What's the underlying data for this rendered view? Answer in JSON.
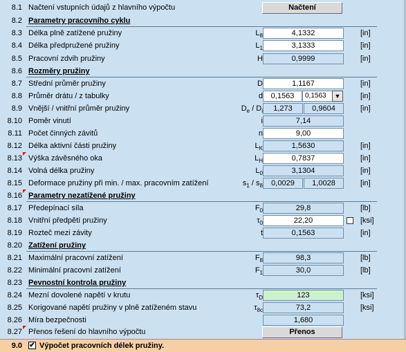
{
  "rows": {
    "r8_1": {
      "num": "8.1",
      "label": "Načtení vstupních údajů z hlavního výpočtu",
      "button": "Načtení"
    },
    "r8_2": {
      "num": "8.2",
      "label": "Parametry pracovního cyklu"
    },
    "r8_3": {
      "num": "8.3",
      "label": "Délka plně zatížené pružiny",
      "sym": "L",
      "sub": "8",
      "value": "4,1332",
      "unit": "[in]"
    },
    "r8_4": {
      "num": "8.4",
      "label": "Délka předpružené pružiny",
      "sym": "L",
      "sub": "1",
      "value": "3,1333",
      "unit": "[in]"
    },
    "r8_5": {
      "num": "8.5",
      "label": "Pracovní zdvih pružiny",
      "sym": "H",
      "value": "0,9999",
      "unit": "[in]"
    },
    "r8_6": {
      "num": "8.6",
      "label": "Rozměry pružiny"
    },
    "r8_7": {
      "num": "8.7",
      "label": "Střední průměr pružiny",
      "sym": "D",
      "value": "1,1167",
      "unit": "[in]"
    },
    "r8_8": {
      "num": "8.8",
      "label": "Průměr drátu / z tabulky",
      "sym": "d",
      "value": "0,1563",
      "dropdown_value": "0,1563",
      "unit": "[in]"
    },
    "r8_9": {
      "num": "8.9",
      "label": "Vnější / vnitřní průměr pružiny",
      "sym": "D",
      "sub": "e",
      "sym2": " / D",
      "sub2": "i",
      "value": "1,273",
      "value2": "0,9604",
      "unit": "[in]"
    },
    "r8_10": {
      "num": "8.10",
      "label": "Poměr vinutí",
      "sym": "i",
      "value": "7,14"
    },
    "r8_11": {
      "num": "8.11",
      "label": "Počet činných závitů",
      "sym": "n",
      "value": "9,00"
    },
    "r8_12": {
      "num": "8.12",
      "label": "Délka aktivní části pružiny",
      "sym": "L",
      "sub": "K",
      "value": "1,5630",
      "unit": "[in]"
    },
    "r8_13": {
      "num": "8.13",
      "label": "Výška závěsného oka",
      "sym": "L",
      "sub": "H",
      "value": "0,7837",
      "unit": "[in]"
    },
    "r8_14": {
      "num": "8.14",
      "label": "Volná délka pružiny",
      "sym": "L",
      "sub": "0",
      "value": "3,1304",
      "unit": "[in]"
    },
    "r8_15": {
      "num": "8.15",
      "label": "Deformace pružiny při min. / max. pracovním zatížení",
      "sym": "s",
      "sub": "1",
      "sym2": " / s",
      "sub2": "8",
      "value": "0,0029",
      "value2": "1,0028",
      "unit": "[in]"
    },
    "r8_16": {
      "num": "8.16",
      "label": "Parametry nezatížené pružiny"
    },
    "r8_17": {
      "num": "8.17",
      "label": "Předepínací síla",
      "sym": "F",
      "sub": "0",
      "value": "29,8",
      "unit": "[lb]"
    },
    "r8_18": {
      "num": "8.18",
      "label": "Vnitřní předpětí pružiny",
      "sym": "τ",
      "sub": "0",
      "value": "22,20",
      "unit": "[ksi]"
    },
    "r8_19": {
      "num": "8.19",
      "label": "Rozteč mezi závity",
      "sym": "t",
      "value": "0,1563",
      "unit": "[in]"
    },
    "r8_20": {
      "num": "8.20",
      "label": "Zatížení pružiny"
    },
    "r8_21": {
      "num": "8.21",
      "label": "Maximální pracovní zatížení",
      "sym": "F",
      "sub": "8",
      "value": "98,3",
      "unit": "[lb]"
    },
    "r8_22": {
      "num": "8.22",
      "label": "Minimální pracovní zatížení",
      "sym": "F",
      "sub": "1",
      "value": "30,0",
      "unit": "[lb]"
    },
    "r8_23": {
      "num": "8.23",
      "label": "Pevnostní kontrola pružiny"
    },
    "r8_24": {
      "num": "8.24",
      "label": "Mezní dovolené napětí v krutu",
      "sym": "τ",
      "sub": "D",
      "value": "123",
      "unit": "[ksi]"
    },
    "r8_25": {
      "num": "8.25",
      "label": "Korigované napětí pružiny v plně zatíženém stavu",
      "sym": "τ",
      "sub": "8c",
      "value": "73,2",
      "unit": "[ksi]"
    },
    "r8_26": {
      "num": "8.26",
      "label": "Míra bezpečnosti",
      "value": "1,680"
    },
    "r8_27": {
      "num": "8.27",
      "label": "Přenos řešení do hlavního výpočtu",
      "button": "Přenos"
    }
  },
  "footer": {
    "num": "9.0",
    "checkbox": "✔",
    "label": "Výpočet pracovních délek pružiny."
  },
  "colors": {
    "background": "#cbe1f2",
    "input": "#ffffff",
    "ok": "#ccf2c8",
    "footer": "#f7cfa4"
  }
}
